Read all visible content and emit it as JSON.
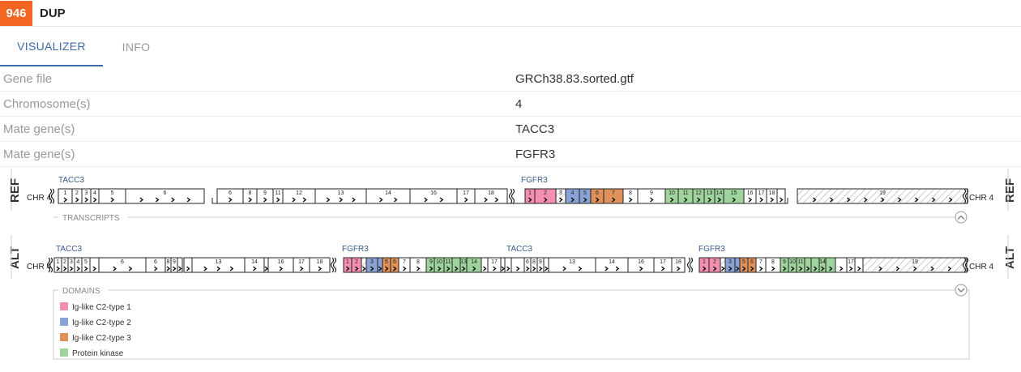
{
  "header": {
    "event_id": "946",
    "event_type": "DUP"
  },
  "tabs": [
    {
      "label": "VISUALIZER"
    },
    {
      "label": "INFO"
    }
  ],
  "info": [
    {
      "key": "Gene file",
      "value": "GRCh38.83.sorted.gtf"
    },
    {
      "key": "Chromosome(s)",
      "value": "4"
    },
    {
      "key": "Mate gene(s)",
      "value": "TACC3"
    },
    {
      "key": "Mate gene(s)",
      "value": "FGFR3"
    }
  ],
  "viz": {
    "ref_label": "REF",
    "alt_label": "ALT",
    "chr_left": "CHR 4",
    "chr_right": "CHR 4",
    "transcripts_label": "TRANSCRIPTS",
    "domains_label": "DOMAINS",
    "genes": {
      "tacc3": "TACC3",
      "fgfr3": "FGFR3"
    },
    "tacc3_exons": [
      "1",
      "2",
      "3",
      "4",
      "5",
      "6",
      "6",
      "8",
      "9",
      "11",
      "12",
      "13",
      "14",
      "16",
      "17",
      "18"
    ],
    "fgfr3_exons": [
      "1",
      "2",
      "3",
      "4",
      "5",
      "6",
      "7",
      "8",
      "9",
      "10",
      "11",
      "12",
      "13",
      "14",
      "15",
      "16",
      "17",
      "18",
      "19"
    ],
    "domains": [
      {
        "name": "Ig-like C2-type 1",
        "color": "#f48fb1"
      },
      {
        "name": "Ig-like C2-type 2",
        "color": "#8aa2d4"
      },
      {
        "name": "Ig-like C2-type 3",
        "color": "#e0915a"
      },
      {
        "name": "Protein kinase",
        "color": "#9fd49c"
      }
    ]
  }
}
